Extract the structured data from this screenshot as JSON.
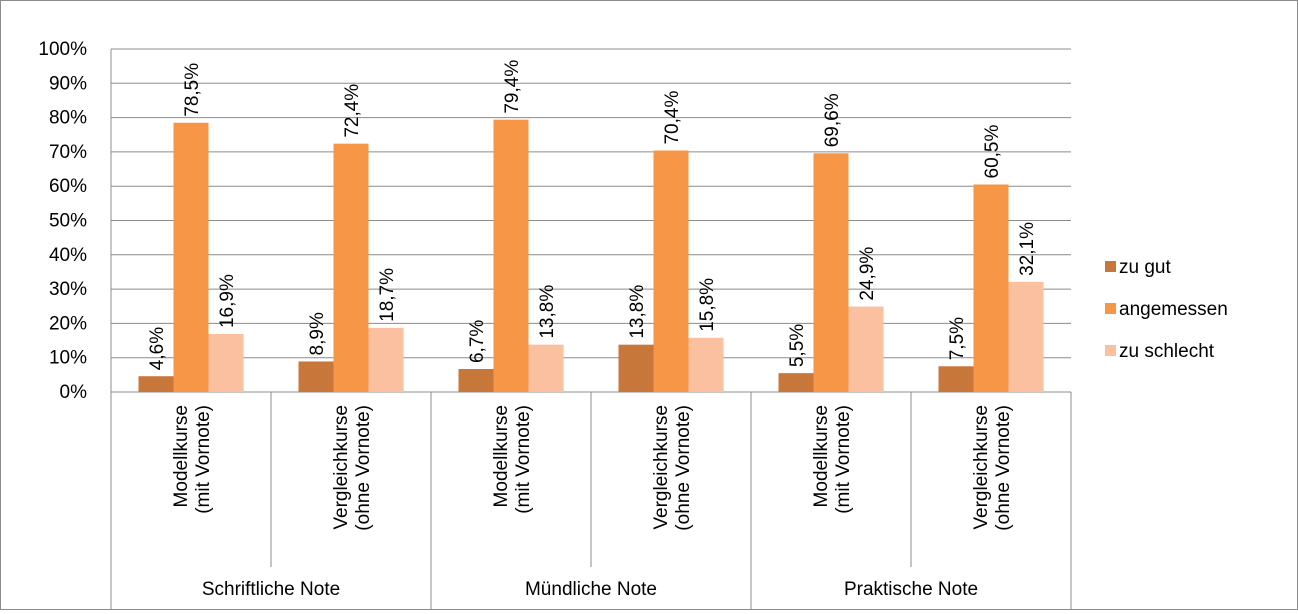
{
  "chart_data": {
    "type": "bar",
    "title": "",
    "xlabel": "",
    "ylabel": "",
    "ylim": [
      0,
      100
    ],
    "y_ticks": [
      "0%",
      "10%",
      "20%",
      "30%",
      "40%",
      "50%",
      "60%",
      "70%",
      "80%",
      "90%",
      "100%"
    ],
    "grid": true,
    "legend_position": "right",
    "groups": [
      {
        "label": "Schriftliche Note",
        "categories": [
          [
            "Modellkurse",
            "(mit Vornote)"
          ],
          [
            "Vergleichkurse",
            "(ohne Vornote)"
          ]
        ]
      },
      {
        "label": "Mündliche Note",
        "categories": [
          [
            "Modellkurse",
            "(mit Vornote)"
          ],
          [
            "Vergleichkurse",
            "(ohne Vornote)"
          ]
        ]
      },
      {
        "label": "Praktische Note",
        "categories": [
          [
            "Modellkurse",
            "(mit Vornote)"
          ],
          [
            "Vergleichkurse",
            "(ohne Vornote)"
          ]
        ]
      }
    ],
    "series": [
      {
        "name": "zu gut",
        "color": "#c8773a",
        "values": [
          4.6,
          8.9,
          6.7,
          13.8,
          5.5,
          7.5
        ],
        "labels": [
          "4,6%",
          "8,9%",
          "6,7%",
          "13,8%",
          "5,5%",
          "7,5%"
        ]
      },
      {
        "name": "angemessen",
        "color": "#f79646",
        "values": [
          78.5,
          72.4,
          79.4,
          70.4,
          69.6,
          60.5
        ],
        "labels": [
          "78,5%",
          "72,4%",
          "79,4%",
          "70,4%",
          "69,6%",
          "60,5%"
        ]
      },
      {
        "name": "zu schlecht",
        "color": "#fac09f",
        "values": [
          16.9,
          18.7,
          13.8,
          15.8,
          24.9,
          32.1
        ],
        "labels": [
          "16,9%",
          "18,7%",
          "13,8%",
          "15,8%",
          "24,9%",
          "32,1%"
        ]
      }
    ]
  }
}
